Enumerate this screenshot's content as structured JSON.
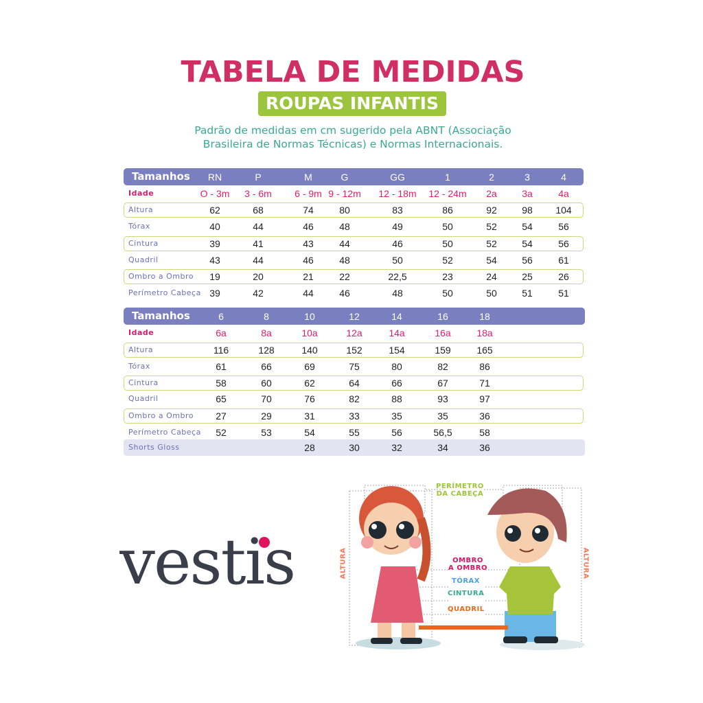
{
  "title": "TABELA DE MEDIDAS",
  "subtitle": "ROUPAS INFANTIS",
  "description_line1": "Padrão de medidas em cm sugerido pela ABNT (Associação",
  "description_line2": "Brasileira de Normas Técnicas) e Normas Internacionais.",
  "colors": {
    "title": "#cf2f62",
    "subtitle_bg": "#9cc43c",
    "description": "#3aa895",
    "header_bg": "#7a7fbf",
    "age": "#e01e6c",
    "row_border": "#c9dc7a",
    "label": "#6a70b8"
  },
  "table1": {
    "header_label": "Tamanhos",
    "sizes": [
      "RN",
      "P",
      "M",
      "G",
      "GG",
      "1",
      "2",
      "3",
      "4"
    ],
    "rows": [
      {
        "label": "Idade",
        "values": [
          "O - 3m",
          "3 - 6m",
          "6 - 9m",
          "9 - 12m",
          "12 - 18m",
          "12 - 24m",
          "2a",
          "3a",
          "4a"
        ]
      },
      {
        "label": "Altura",
        "values": [
          "62",
          "68",
          "74",
          "80",
          "83",
          "86",
          "92",
          "98",
          "104"
        ]
      },
      {
        "label": "Tórax",
        "values": [
          "40",
          "44",
          "46",
          "48",
          "49",
          "50",
          "52",
          "54",
          "56"
        ]
      },
      {
        "label": "Cintura",
        "values": [
          "39",
          "41",
          "43",
          "44",
          "46",
          "50",
          "52",
          "54",
          "56"
        ]
      },
      {
        "label": "Quadril",
        "values": [
          "43",
          "44",
          "46",
          "48",
          "50",
          "52",
          "54",
          "56",
          "61"
        ]
      },
      {
        "label": "Ombro a Ombro",
        "values": [
          "19",
          "20",
          "21",
          "22",
          "22,5",
          "23",
          "24",
          "25",
          "26"
        ]
      },
      {
        "label": "Perímetro Cabeça",
        "values": [
          "39",
          "42",
          "44",
          "46",
          "48",
          "50",
          "50",
          "51",
          "51"
        ]
      }
    ]
  },
  "table2": {
    "header_label": "Tamanhos",
    "sizes": [
      "6",
      "8",
      "10",
      "12",
      "14",
      "16",
      "18"
    ],
    "rows": [
      {
        "label": "Idade",
        "values": [
          "6a",
          "8a",
          "10a",
          "12a",
          "14a",
          "16a",
          "18a"
        ]
      },
      {
        "label": "Altura",
        "values": [
          "116",
          "128",
          "140",
          "152",
          "154",
          "159",
          "165"
        ]
      },
      {
        "label": "Tórax",
        "values": [
          "61",
          "66",
          "69",
          "75",
          "80",
          "82",
          "86"
        ]
      },
      {
        "label": "Cintura",
        "values": [
          "58",
          "60",
          "62",
          "64",
          "66",
          "67",
          "71"
        ]
      },
      {
        "label": "Quadril",
        "values": [
          "65",
          "70",
          "76",
          "82",
          "88",
          "93",
          "97"
        ]
      },
      {
        "label": "Ombro a Ombro",
        "values": [
          "27",
          "29",
          "31",
          "33",
          "35",
          "35",
          "36"
        ]
      },
      {
        "label": "Perímetro Cabeça",
        "values": [
          "52",
          "53",
          "54",
          "55",
          "56",
          "56,5",
          "58"
        ]
      },
      {
        "label": "Shorts Gloss",
        "values": [
          "",
          "",
          "28",
          "30",
          "32",
          "34",
          "36"
        ]
      }
    ]
  },
  "logo": "vestis",
  "illustration": {
    "head": "PERÍMETRO",
    "head2": "DA CABEÇA",
    "shoulder": "OMBRO",
    "shoulder2": "A OMBRO",
    "chest": "TÓRAX",
    "waist": "CINTURA",
    "hip": "QUADRIL",
    "height_left": "ALTURA",
    "height_right": "ALTURA"
  }
}
